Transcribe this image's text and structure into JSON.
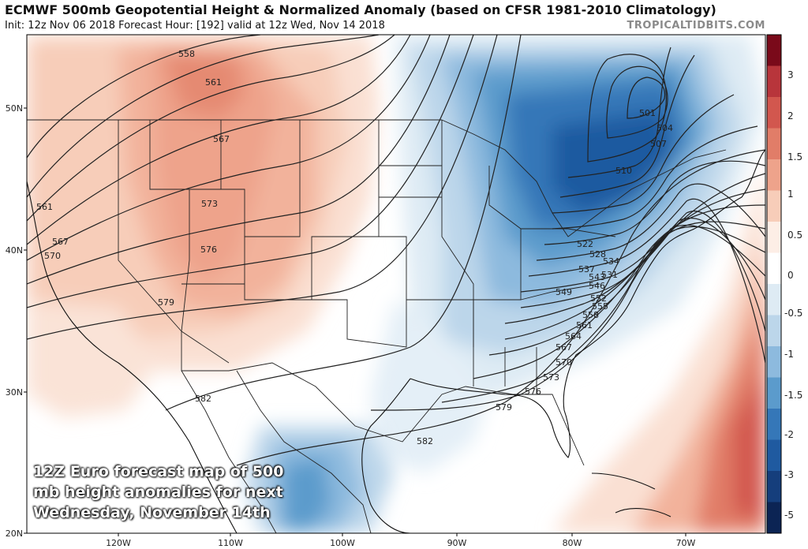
{
  "header": {
    "title": "ECMWF 500mb Geopotential Height & Normalized Anomaly (based on CFSR 1981-2010 Climatology)",
    "subtitle": "Init: 12z Nov 06 2018   Forecast Hour: [192]   valid at 12z Wed, Nov 14 2018",
    "brand": "TROPICALTIDBITS.COM"
  },
  "axes": {
    "lat_labels": [
      "50N",
      "40N",
      "30N",
      "20N"
    ],
    "lon_labels": [
      "120W",
      "110W",
      "100W",
      "90W",
      "80W",
      "70W"
    ]
  },
  "colorbar": {
    "labels": [
      "3",
      "2",
      "1.5",
      "1",
      "0.5",
      "0",
      "-0.5",
      "-1",
      "-1.5",
      "-2",
      "-3",
      "-5"
    ],
    "colors": [
      "#7a0a1a",
      "#b8353b",
      "#d2574e",
      "#e17d68",
      "#eea38b",
      "#f7cdb9",
      "#fdeee6",
      "#ffffff",
      "#deebf4",
      "#bcd6ea",
      "#8dbade",
      "#5b9bcc",
      "#3577b8",
      "#1f5aa0",
      "#153e7c",
      "#0c2454"
    ]
  },
  "contour_labels": [
    "558",
    "561",
    "567",
    "561",
    "573",
    "567",
    "570",
    "576",
    "579",
    "582",
    "582",
    "579",
    "576",
    "573",
    "570",
    "567",
    "564",
    "561",
    "558",
    "555",
    "552",
    "549",
    "546",
    "543",
    "537",
    "534",
    "531",
    "528",
    "522",
    "510",
    "507",
    "504",
    "501"
  ],
  "caption": {
    "line1": "12Z Euro forecast map of 500",
    "line2": "mb height anomalies for next",
    "line3": "Wednesday, November 14th"
  }
}
